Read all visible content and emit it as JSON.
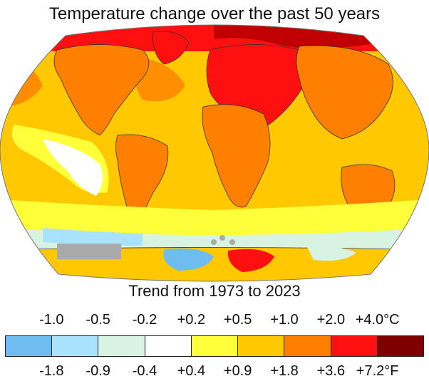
{
  "title": "Temperature change over the past 50 years",
  "subtitle": "Trend from 1973 to 2023",
  "legend": {
    "celsius_ticks": [
      "-1.0",
      "-0.5",
      "-0.2",
      "+0.2",
      "+0.5",
      "+1.0",
      "+2.0",
      "+4.0°C"
    ],
    "fahrenheit_ticks": [
      "-1.8",
      "-0.9",
      "-0.4",
      "+0.4",
      "+0.9",
      "+1.8",
      "+3.6",
      "+7.2°F"
    ],
    "colors": [
      "#6ebcf0",
      "#a8e2fb",
      "#d8f3e1",
      "#ffffff",
      "#ffff3a",
      "#ffc800",
      "#ff8000",
      "#ff1010",
      "#7f0000"
    ]
  },
  "map": {
    "projection": "Robinson",
    "ocean_base_color": "#ffc800",
    "land_outline_color": "#333333",
    "highlight_colors": {
      "arctic": "#e00000",
      "eurasia_hot": "#ff1010",
      "warm": "#ff8000",
      "mild": "#ffff3a",
      "neutral": "#ffffff",
      "cool": "#d8f3e1",
      "cold": "#a8e2fb",
      "colder": "#6ebcf0",
      "no_data": "#aaaaaa"
    }
  }
}
